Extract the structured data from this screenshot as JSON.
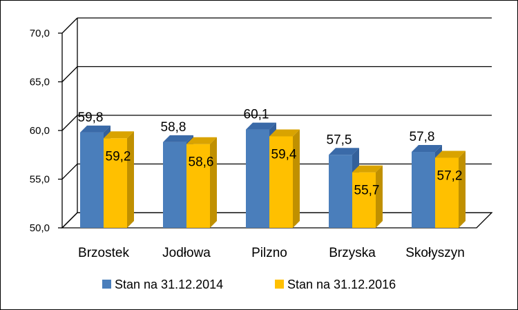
{
  "chart_data": {
    "type": "bar",
    "categories": [
      "Brzostek",
      "Jodłowa",
      "Pilzno",
      "Brzyska",
      "Skołyszyn"
    ],
    "series": [
      {
        "name": "Stan na 31.12.2014",
        "values": [
          59.8,
          58.8,
          60.1,
          57.5,
          57.8
        ],
        "labels": [
          "59,8",
          "58,8",
          "60,1",
          "57,5",
          "57,8"
        ]
      },
      {
        "name": "Stan na 31.12.2016",
        "values": [
          59.2,
          58.6,
          59.4,
          55.7,
          57.2
        ],
        "labels": [
          "59,2",
          "58,6",
          "59,4",
          "55,7",
          "57,2"
        ]
      }
    ],
    "yticks": [
      50,
      55,
      60,
      65,
      70
    ],
    "ytick_labels": [
      "50,0",
      "55,0",
      "60,0",
      "65,0",
      "70,0"
    ],
    "ylim": [
      50,
      70
    ],
    "grid": true,
    "legend_position": "bottom",
    "style": "3d-clustered-column",
    "colors": {
      "series_1": "#4a7ebb",
      "series_2": "#ffc000"
    }
  }
}
